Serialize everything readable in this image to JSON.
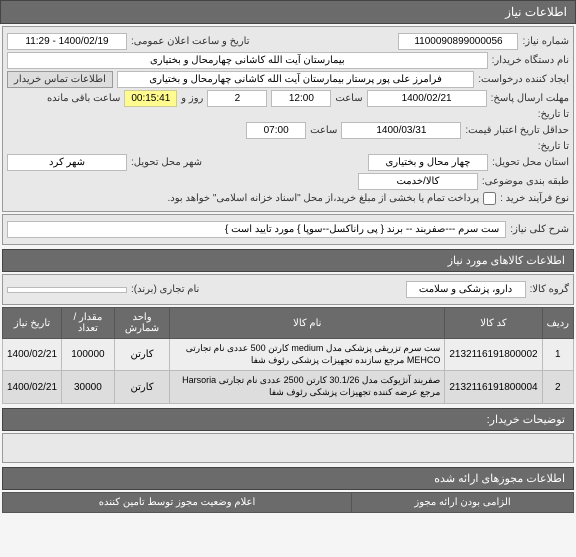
{
  "colors": {
    "header_bg": "#6b6b6b",
    "header_fg": "#ffffff",
    "panel_bg": "#e8e8e8",
    "timer_bg": "#fffb8f"
  },
  "headers": {
    "need_info": "اطلاعات نیاز"
  },
  "fields": {
    "need_number_label": "شماره نیاز:",
    "need_number": "1100090899000056",
    "announce_label": "تاریخ و ساعت اعلان عمومی:",
    "announce": "1400/02/19 - 11:29",
    "buyer_org_label": "نام دستگاه خریدار:",
    "buyer_org": "بیمارستان آیت الله کاشانی چهارمحال و بختیاری",
    "creator_label": "ایجاد کننده درخواست:",
    "creator": "فرامرز علی پور پرستار بیمارستان آیت الله کاشانی چهارمحال و بختیاری",
    "contact_link": "اطلاعات تماس خریدار",
    "deadline_label": "مهلت ارسال پاسخ:",
    "deadline_date": "1400/02/21",
    "deadline_hour_lbl": "ساعت",
    "deadline_hour": "12:00",
    "days": "2",
    "days_lbl": "روز و",
    "timer": "00:15:41",
    "timer_lbl": "ساعت باقی مانده",
    "min_valid_label": "حداقل تاریخ اعتبار قیمت:",
    "min_valid_date": "1400/03/31",
    "min_valid_hour": "07:00",
    "until_label": "تا تاریخ:",
    "province_label": "استان محل تحویل:",
    "province": "چهار محال و بختیاری",
    "city_label": "شهر محل تحویل:",
    "city": "شهر کرد",
    "class_label": "طبقه بندی موضوعی:",
    "class": "کالا/خدمت",
    "buy_type_label": "نوع فرآیند خرید :",
    "partial_pay": "پرداخت تمام یا بخشی از مبلغ خرید،از محل \"اسناد خزانه اسلامی\" خواهد بود.",
    "to_date_label": "تا تاریخ:",
    "desc_label": "شرح کلی نیاز:",
    "desc": "ست سرم ---صفربند -- برند { پی راناکسل--سوپا } مورد تایید است }"
  },
  "items_section": {
    "title": "اطلاعات کالاهای مورد نیاز",
    "group_label": "گروه کالا:",
    "group": "دارو، پزشکی و سلامت",
    "brand_label": "نام تجاری (برند):",
    "columns": [
      "ردیف",
      "کد کالا",
      "نام کالا",
      "واحد شمارش",
      "مقدار / تعداد",
      "تاریخ نیاز"
    ],
    "rows": [
      {
        "idx": "1",
        "code": "2132116191800002",
        "name": "ست سرم تزریقی پزشکی مدل medium کارتن 500 عددی نام تجارتی MEHCO مرجع سازنده تجهیزات پزشکی رئوف شفا",
        "unit": "کارتن",
        "qty": "100000",
        "date": "1400/02/21"
      },
      {
        "idx": "2",
        "code": "2132116191800004",
        "name": "صفربند آنژیوکت مدل 30.1/26 کارتن 2500 عددی نام تجارتی Harsoria مرجع عرضه کننده تجهیزات پزشکی رئوف شفا",
        "unit": "کارتن",
        "qty": "30000",
        "date": "1400/02/21"
      }
    ]
  },
  "buyer_notes_title": "توضیحات خریدار:",
  "attachments_title": "اطلاعات مجوزهای ارائه شده",
  "footer1": "الزامی بودن ارائه مجوز",
  "footer2": "اعلام وضعیت مجوز توسط تامین کننده"
}
